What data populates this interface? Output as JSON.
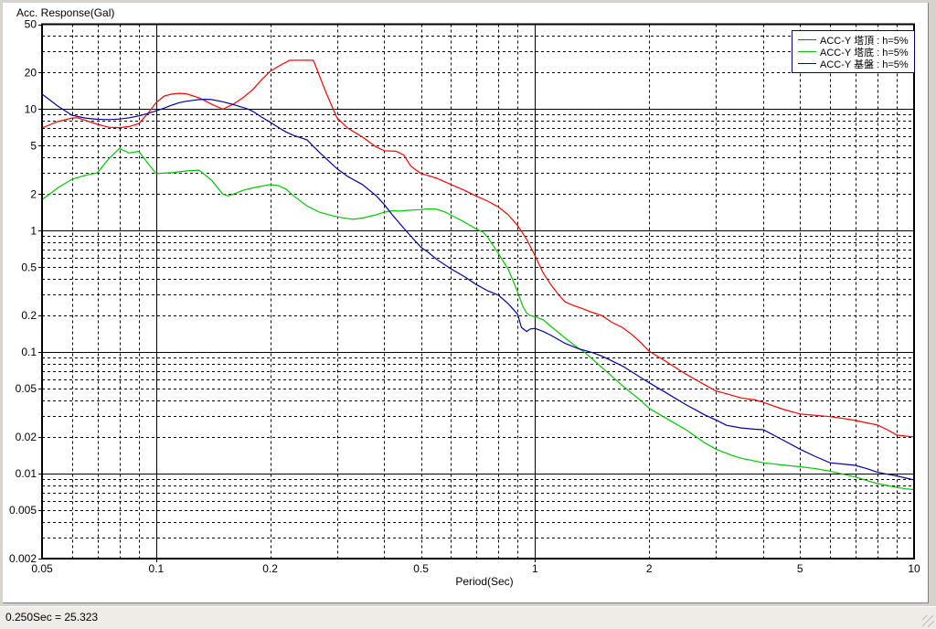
{
  "window": {
    "background": "#d6d3ce",
    "panel_background": "#ffffff"
  },
  "chart": {
    "title": "Acc. Response(Gal)",
    "xlabel": "Period(Sec)"
  },
  "status_bar": {
    "text": "0.250Sec = 25.323",
    "background": "#eeece8"
  },
  "chart_data": {
    "type": "line",
    "title": "Acc. Response(Gal)",
    "xlabel": "Period(Sec)",
    "ylabel": "",
    "x_scale": "log",
    "y_scale": "log",
    "xlim": [
      0.05,
      10
    ],
    "ylim": [
      0.002,
      50
    ],
    "grid": {
      "minor_style": "dashed",
      "decade_style": "solid",
      "x_solid_lines": [
        0.1,
        1
      ],
      "y_solid_lines": [
        10,
        1,
        0.1,
        0.01
      ],
      "color": "#000000"
    },
    "x_tick_values": [
      0.05,
      0.1,
      0.2,
      0.5,
      1,
      2,
      5,
      10
    ],
    "x_tick_labels": [
      "0.05",
      "0.1",
      "0.2",
      "0.5",
      "1",
      "2",
      "5",
      "10"
    ],
    "y_tick_values": [
      50,
      20,
      10,
      5,
      2,
      1,
      0.5,
      0.2,
      0.1,
      0.05,
      0.02,
      0.01,
      0.005,
      0.002
    ],
    "y_tick_labels": [
      "50",
      "20",
      "10",
      "5",
      "2",
      "1",
      "0.5",
      "0.2",
      "0.1",
      "0.05",
      "0.02",
      "0.01",
      "0.005",
      "0.002"
    ],
    "legend": {
      "position": "top-right",
      "border_color": "#000080"
    },
    "series": [
      {
        "name": "ACC-Y 塔頂 : h=5%",
        "color": "#ff0000",
        "points": [
          [
            0.05,
            7.0
          ],
          [
            0.055,
            7.9
          ],
          [
            0.06,
            8.45
          ],
          [
            0.062,
            8.5
          ],
          [
            0.065,
            8.1
          ],
          [
            0.07,
            7.5
          ],
          [
            0.075,
            7.1
          ],
          [
            0.08,
            7.05
          ],
          [
            0.085,
            7.2
          ],
          [
            0.09,
            7.6
          ],
          [
            0.095,
            9.2
          ],
          [
            0.1,
            11.3
          ],
          [
            0.105,
            12.8
          ],
          [
            0.11,
            13.3
          ],
          [
            0.115,
            13.5
          ],
          [
            0.12,
            13.4
          ],
          [
            0.13,
            12.4
          ],
          [
            0.14,
            11.0
          ],
          [
            0.15,
            10.0
          ],
          [
            0.16,
            11.0
          ],
          [
            0.17,
            12.5
          ],
          [
            0.18,
            14.5
          ],
          [
            0.19,
            17.5
          ],
          [
            0.2,
            20.5
          ],
          [
            0.21,
            22.5
          ],
          [
            0.225,
            25.2
          ],
          [
            0.25,
            25.3
          ],
          [
            0.26,
            25.2
          ],
          [
            0.28,
            14.0
          ],
          [
            0.3,
            8.5
          ],
          [
            0.32,
            7.0
          ],
          [
            0.35,
            5.9
          ],
          [
            0.38,
            4.9
          ],
          [
            0.4,
            4.55
          ],
          [
            0.43,
            4.5
          ],
          [
            0.45,
            4.2
          ],
          [
            0.47,
            3.4
          ],
          [
            0.5,
            2.95
          ],
          [
            0.52,
            2.85
          ],
          [
            0.55,
            2.7
          ],
          [
            0.6,
            2.4
          ],
          [
            0.65,
            2.15
          ],
          [
            0.7,
            1.92
          ],
          [
            0.75,
            1.75
          ],
          [
            0.8,
            1.57
          ],
          [
            0.85,
            1.35
          ],
          [
            0.9,
            1.1
          ],
          [
            0.95,
            0.85
          ],
          [
            1.0,
            0.62
          ],
          [
            1.05,
            0.45
          ],
          [
            1.1,
            0.36
          ],
          [
            1.15,
            0.3
          ],
          [
            1.2,
            0.26
          ],
          [
            1.25,
            0.245
          ],
          [
            1.3,
            0.235
          ],
          [
            1.35,
            0.225
          ],
          [
            1.4,
            0.215
          ],
          [
            1.5,
            0.2
          ],
          [
            1.6,
            0.175
          ],
          [
            1.7,
            0.16
          ],
          [
            1.8,
            0.14
          ],
          [
            1.9,
            0.12
          ],
          [
            2.0,
            0.102
          ],
          [
            2.2,
            0.085
          ],
          [
            2.5,
            0.066
          ],
          [
            2.8,
            0.054
          ],
          [
            3.0,
            0.048
          ],
          [
            3.2,
            0.0455
          ],
          [
            3.5,
            0.042
          ],
          [
            3.8,
            0.0405
          ],
          [
            4.0,
            0.0386
          ],
          [
            4.5,
            0.034
          ],
          [
            5.0,
            0.031
          ],
          [
            5.5,
            0.0302
          ],
          [
            6.0,
            0.0295
          ],
          [
            6.5,
            0.0285
          ],
          [
            7.0,
            0.0274
          ],
          [
            7.5,
            0.0262
          ],
          [
            8.0,
            0.0252
          ],
          [
            8.5,
            0.023
          ],
          [
            9.0,
            0.0208
          ],
          [
            9.5,
            0.0204
          ],
          [
            10.0,
            0.0201
          ]
        ]
      },
      {
        "name": "ACC-Y 塔底 : h=5%",
        "color": "#00c800",
        "points": [
          [
            0.05,
            1.8
          ],
          [
            0.055,
            2.25
          ],
          [
            0.06,
            2.65
          ],
          [
            0.065,
            2.85
          ],
          [
            0.07,
            3.0
          ],
          [
            0.075,
            3.9
          ],
          [
            0.08,
            4.75
          ],
          [
            0.085,
            4.35
          ],
          [
            0.09,
            4.5
          ],
          [
            0.095,
            3.6
          ],
          [
            0.1,
            2.95
          ],
          [
            0.11,
            3.0
          ],
          [
            0.12,
            3.1
          ],
          [
            0.13,
            3.15
          ],
          [
            0.14,
            2.6
          ],
          [
            0.15,
            2.0
          ],
          [
            0.155,
            1.93
          ],
          [
            0.16,
            2.0
          ],
          [
            0.17,
            2.15
          ],
          [
            0.18,
            2.25
          ],
          [
            0.2,
            2.4
          ],
          [
            0.21,
            2.35
          ],
          [
            0.22,
            2.2
          ],
          [
            0.23,
            1.95
          ],
          [
            0.25,
            1.6
          ],
          [
            0.27,
            1.42
          ],
          [
            0.3,
            1.3
          ],
          [
            0.33,
            1.24
          ],
          [
            0.35,
            1.27
          ],
          [
            0.38,
            1.35
          ],
          [
            0.4,
            1.42
          ],
          [
            0.42,
            1.46
          ],
          [
            0.44,
            1.45
          ],
          [
            0.46,
            1.47
          ],
          [
            0.48,
            1.48
          ],
          [
            0.5,
            1.49
          ],
          [
            0.52,
            1.51
          ],
          [
            0.55,
            1.5
          ],
          [
            0.58,
            1.42
          ],
          [
            0.6,
            1.34
          ],
          [
            0.65,
            1.18
          ],
          [
            0.7,
            1.03
          ],
          [
            0.73,
            0.97
          ],
          [
            0.75,
            0.88
          ],
          [
            0.8,
            0.65
          ],
          [
            0.85,
            0.48
          ],
          [
            0.88,
            0.37
          ],
          [
            0.9,
            0.31
          ],
          [
            0.93,
            0.235
          ],
          [
            0.95,
            0.21
          ],
          [
            0.97,
            0.2
          ],
          [
            1.0,
            0.196
          ],
          [
            1.05,
            0.185
          ],
          [
            1.1,
            0.163
          ],
          [
            1.15,
            0.146
          ],
          [
            1.2,
            0.131
          ],
          [
            1.3,
            0.108
          ],
          [
            1.35,
            0.1
          ],
          [
            1.5,
            0.075
          ],
          [
            1.7,
            0.053
          ],
          [
            1.9,
            0.04
          ],
          [
            2.0,
            0.0345
          ],
          [
            2.2,
            0.029
          ],
          [
            2.5,
            0.023
          ],
          [
            2.8,
            0.018
          ],
          [
            3.0,
            0.0159
          ],
          [
            3.3,
            0.0142
          ],
          [
            3.5,
            0.0134
          ],
          [
            3.8,
            0.0127
          ],
          [
            4.0,
            0.0123
          ],
          [
            4.5,
            0.0118
          ],
          [
            5.0,
            0.0114
          ],
          [
            5.5,
            0.011
          ],
          [
            6.0,
            0.0105
          ],
          [
            6.5,
            0.0099
          ],
          [
            7.0,
            0.0094
          ],
          [
            7.5,
            0.0088
          ],
          [
            8.0,
            0.0083
          ],
          [
            8.5,
            0.008
          ],
          [
            9.0,
            0.0077
          ],
          [
            9.5,
            0.0075
          ],
          [
            10.0,
            0.0074
          ]
        ]
      },
      {
        "name": "ACC-Y 基盤 : h=5%",
        "color": "#0000a8",
        "points": [
          [
            0.05,
            13.3
          ],
          [
            0.055,
            10.6
          ],
          [
            0.06,
            8.9
          ],
          [
            0.065,
            8.45
          ],
          [
            0.07,
            8.25
          ],
          [
            0.075,
            8.2
          ],
          [
            0.08,
            8.3
          ],
          [
            0.085,
            8.5
          ],
          [
            0.09,
            8.8
          ],
          [
            0.095,
            9.2
          ],
          [
            0.1,
            9.7
          ],
          [
            0.105,
            10.2
          ],
          [
            0.11,
            10.8
          ],
          [
            0.115,
            11.3
          ],
          [
            0.12,
            11.6
          ],
          [
            0.125,
            11.8
          ],
          [
            0.13,
            12.0
          ],
          [
            0.135,
            12.05
          ],
          [
            0.14,
            12.0
          ],
          [
            0.15,
            11.5
          ],
          [
            0.16,
            10.9
          ],
          [
            0.17,
            10.3
          ],
          [
            0.175,
            10.0
          ],
          [
            0.18,
            9.6
          ],
          [
            0.19,
            8.6
          ],
          [
            0.2,
            7.8
          ],
          [
            0.21,
            7.1
          ],
          [
            0.22,
            6.5
          ],
          [
            0.23,
            6.1
          ],
          [
            0.25,
            5.6
          ],
          [
            0.27,
            4.4
          ],
          [
            0.3,
            3.24
          ],
          [
            0.32,
            2.8
          ],
          [
            0.35,
            2.4
          ],
          [
            0.38,
            1.95
          ],
          [
            0.4,
            1.64
          ],
          [
            0.42,
            1.35
          ],
          [
            0.45,
            1.05
          ],
          [
            0.47,
            0.9
          ],
          [
            0.5,
            0.73
          ],
          [
            0.52,
            0.67
          ],
          [
            0.55,
            0.58
          ],
          [
            0.6,
            0.485
          ],
          [
            0.65,
            0.42
          ],
          [
            0.7,
            0.36
          ],
          [
            0.75,
            0.32
          ],
          [
            0.8,
            0.295
          ],
          [
            0.85,
            0.25
          ],
          [
            0.9,
            0.205
          ],
          [
            0.92,
            0.16
          ],
          [
            0.95,
            0.148
          ],
          [
            0.97,
            0.155
          ],
          [
            1.0,
            0.157
          ],
          [
            1.05,
            0.148
          ],
          [
            1.1,
            0.138
          ],
          [
            1.2,
            0.118
          ],
          [
            1.3,
            0.107
          ],
          [
            1.42,
            0.099
          ],
          [
            1.5,
            0.093
          ],
          [
            1.7,
            0.077
          ],
          [
            2.0,
            0.056
          ],
          [
            2.2,
            0.047
          ],
          [
            2.5,
            0.037
          ],
          [
            2.8,
            0.0305
          ],
          [
            3.0,
            0.0277
          ],
          [
            3.2,
            0.025
          ],
          [
            3.5,
            0.0238
          ],
          [
            3.8,
            0.0232
          ],
          [
            4.0,
            0.023
          ],
          [
            4.5,
            0.019
          ],
          [
            5.0,
            0.0159
          ],
          [
            5.5,
            0.0138
          ],
          [
            6.0,
            0.0123
          ],
          [
            6.5,
            0.012
          ],
          [
            7.0,
            0.0117
          ],
          [
            7.5,
            0.011
          ],
          [
            8.0,
            0.0103
          ],
          [
            8.5,
            0.0099
          ],
          [
            9.0,
            0.0096
          ],
          [
            9.5,
            0.0092
          ],
          [
            10.0,
            0.0089
          ]
        ]
      }
    ]
  }
}
